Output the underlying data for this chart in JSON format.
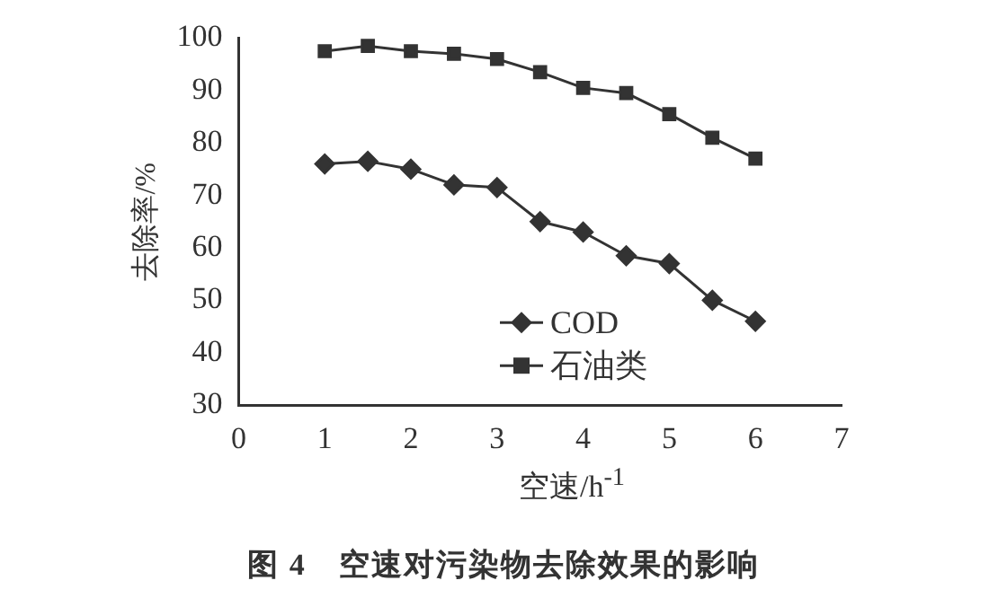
{
  "chart_data": {
    "type": "line",
    "title": "图 4　空速对污染物去除效果的影响",
    "xlabel": "空速/h$^{-1}$",
    "ylabel": "去除率/%",
    "x": [
      1,
      1.5,
      2,
      2.5,
      3,
      3.5,
      4,
      4.5,
      5,
      5.5,
      6
    ],
    "series": [
      {
        "name": "COD",
        "color": "#333333",
        "marker": "diamond",
        "values": [
          76,
          76.5,
          75,
          72,
          71.5,
          65,
          63,
          58.5,
          57,
          50,
          46
        ]
      },
      {
        "name": "石油类",
        "color": "#333333",
        "marker": "square",
        "values": [
          97.5,
          98.5,
          97.5,
          97,
          96,
          93.5,
          90.5,
          89.5,
          85.5,
          81,
          77
        ]
      }
    ],
    "xlim": [
      0,
      7
    ],
    "xticks": [
      0,
      1,
      2,
      3,
      4,
      5,
      6,
      7
    ],
    "ylim": [
      30,
      100
    ],
    "yticks": [
      30,
      40,
      50,
      60,
      70,
      80,
      90,
      100
    ],
    "grid": false,
    "legend": "bottom right",
    "line_style": "solid"
  }
}
